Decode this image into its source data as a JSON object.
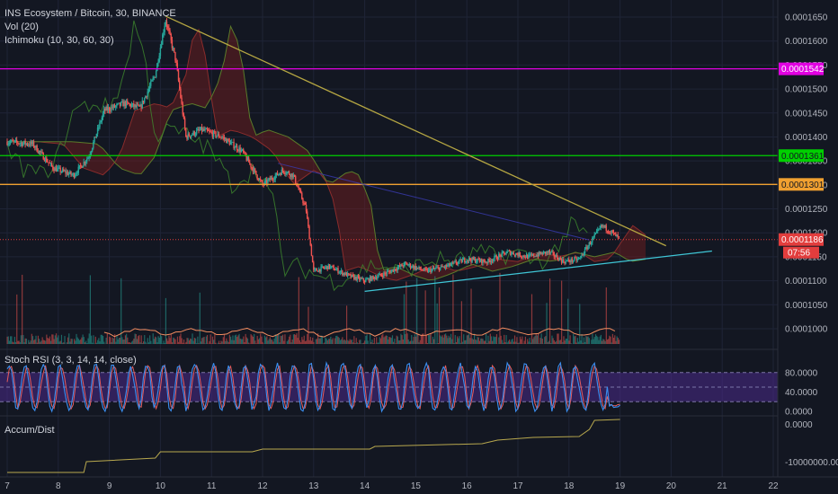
{
  "legend": {
    "symbol": "INS Ecosystem / Bitcoin, 30, BINANCE",
    "volume": "Vol (20)",
    "ichimoku": "Ichimoku (10, 30, 60, 30)",
    "stoch": "Stoch RSI (3, 3, 14, 14, close)",
    "accum": "Accum/Dist"
  },
  "colors": {
    "background": "#131722",
    "grid": "#1f2436",
    "up": "#26a69a",
    "down": "#ef5350",
    "trend_upper": "#b5a642",
    "trend_lower": "#3fc6d6",
    "line_magenta": "#e100e1",
    "line_green": "#00d000",
    "line_orange": "#f0a030",
    "price_red": "#e23d3d",
    "rsi_band": "#4b2a8a",
    "rsi_k": "#3a8ef0",
    "rsi_d": "#e65c5c",
    "accum": "#b8a84e"
  },
  "chart_data": {
    "type": "candlestick",
    "x_ticks": [
      "7",
      "8",
      "9",
      "10",
      "11",
      "12",
      "13",
      "14",
      "15",
      "16",
      "17",
      "18",
      "19",
      "20",
      "21",
      "22"
    ],
    "price_axis": {
      "ticks": [
        "0.0001650",
        "0.0001600",
        "0.0001550",
        "0.0001500",
        "0.0001450",
        "0.0001400",
        "0.0001350",
        "0.0001300",
        "0.0001250",
        "0.0001200",
        "0.0001150",
        "0.0001100",
        "0.0001050",
        "0.0001000"
      ],
      "ylim": [
        9.75e-05,
        0.0001665
      ]
    },
    "horizontal_lines": [
      {
        "price": 0.0001542,
        "label": "0.0001542",
        "color_key": "line_magenta"
      },
      {
        "price": 0.0001361,
        "label": "0.0001361",
        "color_key": "line_green"
      },
      {
        "price": 0.0001301,
        "label": "0.0001301",
        "color_key": "line_orange"
      }
    ],
    "last_price": {
      "price": 0.0001186,
      "label": "0.0001186",
      "countdown": "07:56"
    },
    "trendlines": [
      {
        "name": "upper",
        "from": [
          10.1,
          0.0001652
        ],
        "to": [
          19.9,
          0.0001173
        ]
      },
      {
        "name": "lower",
        "from": [
          14.0,
          0.0001078
        ],
        "to": [
          20.8,
          0.0001162
        ]
      }
    ],
    "price_path": [
      [
        7.0,
        0.000139
      ],
      [
        7.5,
        0.0001385
      ],
      [
        7.9,
        0.0001335
      ],
      [
        8.3,
        0.000132
      ],
      [
        8.6,
        0.000136
      ],
      [
        8.9,
        0.0001455
      ],
      [
        9.3,
        0.000147
      ],
      [
        9.6,
        0.000146
      ],
      [
        9.9,
        0.000153
      ],
      [
        10.1,
        0.0001645
      ],
      [
        10.3,
        0.000156
      ],
      [
        10.5,
        0.00014
      ],
      [
        10.8,
        0.0001415
      ],
      [
        11.2,
        0.00014
      ],
      [
        11.6,
        0.000137
      ],
      [
        12.0,
        0.00013
      ],
      [
        12.4,
        0.000133
      ],
      [
        12.6,
        0.000132
      ],
      [
        12.85,
        0.000125
      ],
      [
        13.0,
        0.000112
      ],
      [
        13.3,
        0.000113
      ],
      [
        13.7,
        0.000111
      ],
      [
        14.0,
        0.00011
      ],
      [
        14.4,
        0.0001115
      ],
      [
        14.8,
        0.0001135
      ],
      [
        15.2,
        0.000112
      ],
      [
        15.6,
        0.000113
      ],
      [
        16.0,
        0.0001145
      ],
      [
        16.4,
        0.000114
      ],
      [
        16.8,
        0.000116
      ],
      [
        17.2,
        0.000115
      ],
      [
        17.6,
        0.000116
      ],
      [
        17.9,
        0.000114
      ],
      [
        18.2,
        0.0001145
      ],
      [
        18.45,
        0.0001185
      ],
      [
        18.65,
        0.0001215
      ],
      [
        18.85,
        0.00012
      ],
      [
        19.0,
        0.0001186
      ]
    ],
    "stoch_axis": {
      "ticks": [
        "80.0000",
        "40.0000",
        "0.0000"
      ],
      "ylim": [
        0,
        100
      ],
      "band": [
        20,
        80
      ]
    },
    "accum_axis": {
      "ticks": [
        "0.0000",
        "-10000000.0000"
      ]
    }
  }
}
